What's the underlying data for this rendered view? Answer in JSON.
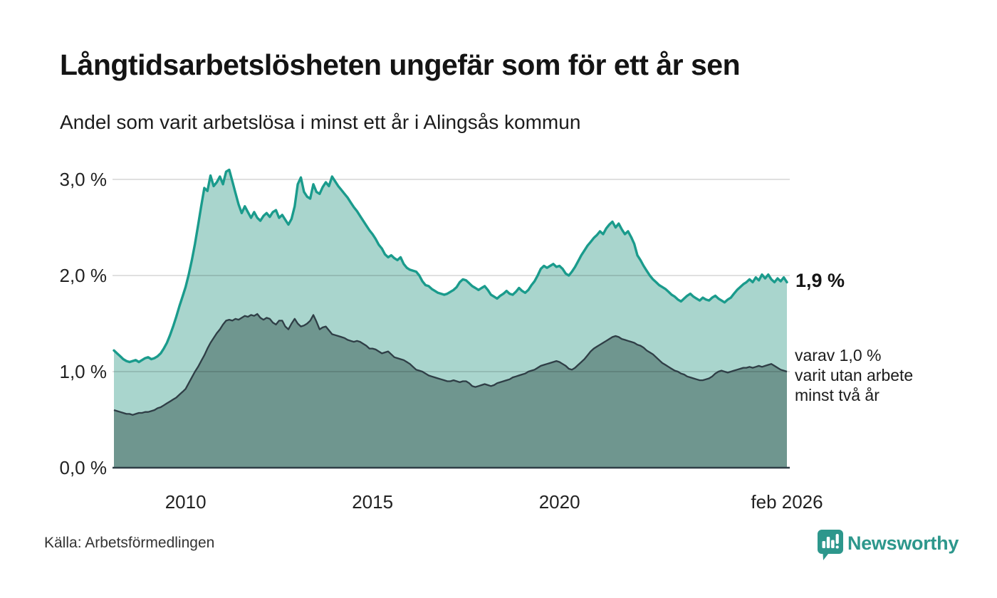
{
  "header": {
    "title": "Långtidsarbetslösheten ungefär som för ett år sen",
    "subtitle": "Andel som varit arbetslösa i minst ett år i Alingsås kommun"
  },
  "annotations": {
    "latest_total": "1,9 %",
    "secondary_lines": [
      "varav 1,0 %",
      "varit utan arbete",
      "minst två år"
    ]
  },
  "footer": {
    "source": "Källa: Arbetsförmedlingen",
    "brand_name": "Newsworthy"
  },
  "colors": {
    "line_total": "#1a9b8c",
    "fill_total": "#a9d5cd",
    "line_two_years": "#2f3e46",
    "fill_two_years": "#6f968f",
    "baseline": "#2f3e46",
    "gridline_overlay": "rgba(0,0,0,0.12)",
    "brand": "#2d978c"
  },
  "chart_data": {
    "type": "area",
    "title": "Andel som varit arbetslösa i minst ett år i Alingsås kommun",
    "unit": "%",
    "frequency": "monthly",
    "period_start": "2008-02",
    "period_end": "2026-02",
    "ylim": [
      0,
      3.25
    ],
    "grid_values": [
      1.0,
      2.0,
      3.0
    ],
    "y_tick_labels": [
      "0,0 %",
      "1,0 %",
      "2,0 %",
      "3,0 %"
    ],
    "x_ticks": [
      {
        "label": "2010",
        "index": 23
      },
      {
        "label": "2015",
        "index": 83
      },
      {
        "label": "2020",
        "index": 143
      },
      {
        "label": "feb 2026",
        "index": 216
      }
    ],
    "series": [
      {
        "name": "Andel arbetslösa minst ett år",
        "latest": 1.9,
        "values": [
          1.22,
          1.19,
          1.16,
          1.13,
          1.11,
          1.1,
          1.11,
          1.12,
          1.1,
          1.12,
          1.14,
          1.15,
          1.13,
          1.14,
          1.16,
          1.19,
          1.24,
          1.3,
          1.38,
          1.47,
          1.57,
          1.68,
          1.78,
          1.88,
          2.01,
          2.16,
          2.33,
          2.52,
          2.72,
          2.91,
          2.88,
          3.04,
          2.93,
          2.97,
          3.03,
          2.95,
          3.08,
          3.1,
          2.98,
          2.86,
          2.74,
          2.65,
          2.72,
          2.66,
          2.6,
          2.66,
          2.6,
          2.57,
          2.62,
          2.65,
          2.61,
          2.66,
          2.68,
          2.6,
          2.63,
          2.58,
          2.53,
          2.59,
          2.72,
          2.95,
          3.02,
          2.87,
          2.82,
          2.8,
          2.95,
          2.87,
          2.85,
          2.92,
          2.97,
          2.93,
          3.03,
          2.98,
          2.93,
          2.89,
          2.85,
          2.81,
          2.76,
          2.71,
          2.67,
          2.62,
          2.57,
          2.52,
          2.47,
          2.43,
          2.38,
          2.32,
          2.28,
          2.22,
          2.19,
          2.21,
          2.18,
          2.16,
          2.19,
          2.12,
          2.08,
          2.06,
          2.05,
          2.04,
          2.0,
          1.94,
          1.9,
          1.89,
          1.86,
          1.84,
          1.82,
          1.81,
          1.8,
          1.81,
          1.83,
          1.85,
          1.88,
          1.93,
          1.96,
          1.95,
          1.92,
          1.89,
          1.87,
          1.85,
          1.87,
          1.89,
          1.85,
          1.8,
          1.78,
          1.76,
          1.79,
          1.81,
          1.84,
          1.81,
          1.8,
          1.83,
          1.87,
          1.84,
          1.82,
          1.85,
          1.9,
          1.94,
          2.0,
          2.07,
          2.1,
          2.08,
          2.1,
          2.12,
          2.09,
          2.1,
          2.07,
          2.02,
          2.0,
          2.04,
          2.09,
          2.15,
          2.21,
          2.26,
          2.31,
          2.35,
          2.39,
          2.42,
          2.46,
          2.43,
          2.49,
          2.53,
          2.56,
          2.5,
          2.54,
          2.48,
          2.43,
          2.46,
          2.4,
          2.33,
          2.21,
          2.16,
          2.1,
          2.05,
          2.0,
          1.96,
          1.93,
          1.9,
          1.88,
          1.86,
          1.83,
          1.8,
          1.78,
          1.75,
          1.73,
          1.76,
          1.79,
          1.81,
          1.78,
          1.76,
          1.74,
          1.77,
          1.75,
          1.74,
          1.77,
          1.79,
          1.76,
          1.74,
          1.72,
          1.75,
          1.77,
          1.81,
          1.85,
          1.88,
          1.91,
          1.93,
          1.96,
          1.93,
          1.98,
          1.95,
          2.01,
          1.97,
          2.01,
          1.96,
          1.93,
          1.97,
          1.94,
          1.98,
          1.93
        ]
      },
      {
        "name": "Andel utan arbete minst två år",
        "latest": 1.0,
        "values": [
          0.6,
          0.59,
          0.58,
          0.57,
          0.56,
          0.56,
          0.55,
          0.56,
          0.57,
          0.57,
          0.58,
          0.58,
          0.59,
          0.6,
          0.62,
          0.63,
          0.65,
          0.67,
          0.69,
          0.71,
          0.73,
          0.76,
          0.79,
          0.82,
          0.88,
          0.94,
          1.0,
          1.05,
          1.11,
          1.17,
          1.24,
          1.3,
          1.35,
          1.4,
          1.44,
          1.49,
          1.53,
          1.54,
          1.53,
          1.55,
          1.54,
          1.56,
          1.58,
          1.57,
          1.59,
          1.58,
          1.6,
          1.56,
          1.54,
          1.56,
          1.55,
          1.51,
          1.49,
          1.53,
          1.53,
          1.47,
          1.44,
          1.5,
          1.55,
          1.5,
          1.47,
          1.48,
          1.5,
          1.53,
          1.59,
          1.52,
          1.44,
          1.46,
          1.47,
          1.43,
          1.39,
          1.38,
          1.37,
          1.36,
          1.35,
          1.33,
          1.32,
          1.31,
          1.32,
          1.31,
          1.29,
          1.27,
          1.24,
          1.24,
          1.23,
          1.21,
          1.19,
          1.2,
          1.21,
          1.18,
          1.15,
          1.14,
          1.13,
          1.12,
          1.1,
          1.08,
          1.05,
          1.02,
          1.01,
          1.0,
          0.98,
          0.96,
          0.95,
          0.94,
          0.93,
          0.92,
          0.91,
          0.9,
          0.9,
          0.91,
          0.9,
          0.89,
          0.9,
          0.9,
          0.88,
          0.85,
          0.84,
          0.85,
          0.86,
          0.87,
          0.86,
          0.85,
          0.86,
          0.88,
          0.89,
          0.9,
          0.91,
          0.92,
          0.94,
          0.95,
          0.96,
          0.97,
          0.98,
          1.0,
          1.01,
          1.02,
          1.04,
          1.06,
          1.07,
          1.08,
          1.09,
          1.1,
          1.11,
          1.1,
          1.08,
          1.06,
          1.03,
          1.02,
          1.04,
          1.07,
          1.1,
          1.13,
          1.17,
          1.21,
          1.24,
          1.26,
          1.28,
          1.3,
          1.32,
          1.34,
          1.36,
          1.37,
          1.36,
          1.34,
          1.33,
          1.32,
          1.31,
          1.3,
          1.28,
          1.27,
          1.25,
          1.22,
          1.2,
          1.18,
          1.15,
          1.12,
          1.09,
          1.07,
          1.05,
          1.03,
          1.01,
          1.0,
          0.98,
          0.97,
          0.95,
          0.94,
          0.93,
          0.92,
          0.91,
          0.91,
          0.92,
          0.93,
          0.95,
          0.98,
          1.0,
          1.01,
          1.0,
          0.99,
          1.0,
          1.01,
          1.02,
          1.03,
          1.04,
          1.04,
          1.05,
          1.04,
          1.05,
          1.06,
          1.05,
          1.06,
          1.07,
          1.08,
          1.06,
          1.04,
          1.02,
          1.01,
          1.0
        ]
      }
    ],
    "legend_position": "annotations-right",
    "grid": true
  }
}
